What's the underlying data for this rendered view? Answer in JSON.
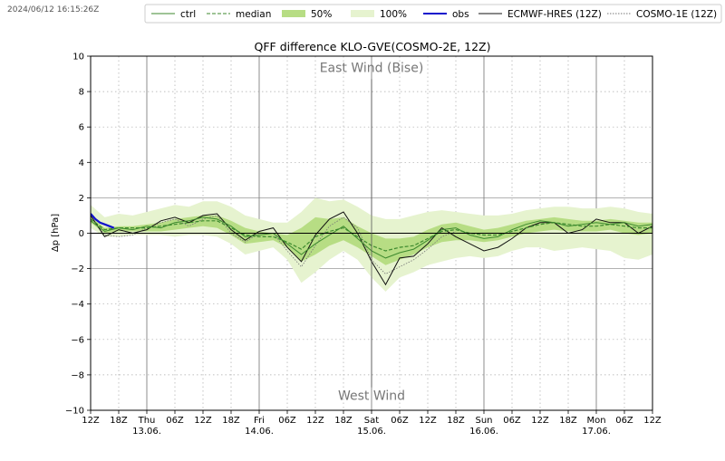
{
  "timestamp": "2024/06/12 16:15:26Z",
  "chart_data": {
    "type": "line",
    "title": "QFF difference KLO-GVE(COSMO-2E, 12Z)",
    "ylabel": "Δp [hPa]",
    "xlabel": "",
    "ylim": [
      -10,
      10
    ],
    "yticks": [
      -10,
      -8,
      -6,
      -4,
      -2,
      0,
      2,
      4,
      6,
      8,
      10
    ],
    "xlim": [
      0,
      120
    ],
    "xticks": [
      {
        "x": 0,
        "label": "12Z"
      },
      {
        "x": 6,
        "label": "18Z"
      },
      {
        "x": 12,
        "label": "Thu\n13.06."
      },
      {
        "x": 18,
        "label": "06Z"
      },
      {
        "x": 24,
        "label": "12Z"
      },
      {
        "x": 30,
        "label": "18Z"
      },
      {
        "x": 36,
        "label": "Fri\n14.06."
      },
      {
        "x": 42,
        "label": "06Z"
      },
      {
        "x": 48,
        "label": "12Z"
      },
      {
        "x": 54,
        "label": "18Z"
      },
      {
        "x": 60,
        "label": "Sat\n15.06."
      },
      {
        "x": 66,
        "label": "06Z"
      },
      {
        "x": 72,
        "label": "12Z"
      },
      {
        "x": 78,
        "label": "18Z"
      },
      {
        "x": 84,
        "label": "Sun\n16.06."
      },
      {
        "x": 90,
        "label": "06Z"
      },
      {
        "x": 96,
        "label": "12Z"
      },
      {
        "x": 102,
        "label": "18Z"
      },
      {
        "x": 108,
        "label": "Mon\n17.06."
      },
      {
        "x": 114,
        "label": "06Z"
      },
      {
        "x": 120,
        "label": "12Z"
      }
    ],
    "grid": true,
    "annotations": {
      "top": "East Wind (Bise)",
      "bottom": "West Wind"
    },
    "legend_position": "top-right",
    "legend": [
      {
        "label": "ctrl",
        "style": "ctrl"
      },
      {
        "label": "median",
        "style": "median"
      },
      {
        "label": "50%",
        "style": "band50"
      },
      {
        "label": "100%",
        "style": "band100"
      },
      {
        "label": "obs",
        "style": "obs"
      },
      {
        "label": "ECMWF-HRES (12Z)",
        "style": "ecmwf"
      },
      {
        "label": "COSMO-1E (12Z)",
        "style": "cosmo1e"
      }
    ],
    "colors": {
      "band100": "#e6f3cf",
      "band50": "#b7dd84",
      "ctrl": "#3d8a2e",
      "median": "#3d8a2e",
      "obs": "#1111cc",
      "ecmwf": "#111111",
      "cosmo1e": "#777777",
      "zero": "#000000",
      "day_lines": "#808080",
      "grid": "#aaaaaa"
    },
    "series": {
      "band100_upper": [
        [
          0,
          1.6
        ],
        [
          3,
          0.9
        ],
        [
          6,
          1.1
        ],
        [
          9,
          1.0
        ],
        [
          12,
          1.2
        ],
        [
          15,
          1.4
        ],
        [
          18,
          1.6
        ],
        [
          21,
          1.5
        ],
        [
          24,
          1.8
        ],
        [
          27,
          1.8
        ],
        [
          30,
          1.5
        ],
        [
          33,
          1.0
        ],
        [
          36,
          0.8
        ],
        [
          39,
          0.6
        ],
        [
          42,
          0.6
        ],
        [
          45,
          1.2
        ],
        [
          48,
          2.0
        ],
        [
          51,
          1.8
        ],
        [
          54,
          1.9
        ],
        [
          57,
          1.5
        ],
        [
          60,
          1.0
        ],
        [
          63,
          0.8
        ],
        [
          66,
          0.8
        ],
        [
          69,
          1.0
        ],
        [
          72,
          1.2
        ],
        [
          75,
          1.3
        ],
        [
          78,
          1.2
        ],
        [
          81,
          1.1
        ],
        [
          84,
          1.0
        ],
        [
          87,
          1.0
        ],
        [
          90,
          1.1
        ],
        [
          93,
          1.3
        ],
        [
          96,
          1.4
        ],
        [
          99,
          1.5
        ],
        [
          102,
          1.5
        ],
        [
          105,
          1.4
        ],
        [
          108,
          1.4
        ],
        [
          111,
          1.5
        ],
        [
          114,
          1.4
        ],
        [
          117,
          1.2
        ],
        [
          120,
          1.1
        ]
      ],
      "band100_lower": [
        [
          0,
          0.3
        ],
        [
          3,
          -0.2
        ],
        [
          6,
          -0.2
        ],
        [
          9,
          -0.1
        ],
        [
          12,
          -0.1
        ],
        [
          15,
          -0.1
        ],
        [
          18,
          -0.2
        ],
        [
          21,
          -0.1
        ],
        [
          24,
          -0.1
        ],
        [
          27,
          -0.2
        ],
        [
          30,
          -0.6
        ],
        [
          33,
          -1.2
        ],
        [
          36,
          -1.0
        ],
        [
          39,
          -0.8
        ],
        [
          42,
          -1.5
        ],
        [
          45,
          -2.8
        ],
        [
          48,
          -2.2
        ],
        [
          51,
          -1.5
        ],
        [
          54,
          -1.0
        ],
        [
          57,
          -1.5
        ],
        [
          60,
          -2.5
        ],
        [
          63,
          -3.3
        ],
        [
          66,
          -2.5
        ],
        [
          69,
          -2.2
        ],
        [
          72,
          -1.8
        ],
        [
          75,
          -1.6
        ],
        [
          78,
          -1.4
        ],
        [
          81,
          -1.3
        ],
        [
          84,
          -1.4
        ],
        [
          87,
          -1.3
        ],
        [
          90,
          -1.0
        ],
        [
          93,
          -0.8
        ],
        [
          96,
          -0.8
        ],
        [
          99,
          -1.0
        ],
        [
          102,
          -0.9
        ],
        [
          105,
          -0.8
        ],
        [
          108,
          -0.9
        ],
        [
          111,
          -1.0
        ],
        [
          114,
          -1.4
        ],
        [
          117,
          -1.5
        ],
        [
          120,
          -1.2
        ]
      ],
      "band50_upper": [
        [
          0,
          0.9
        ],
        [
          3,
          0.3
        ],
        [
          6,
          0.4
        ],
        [
          9,
          0.4
        ],
        [
          12,
          0.5
        ],
        [
          15,
          0.6
        ],
        [
          18,
          0.8
        ],
        [
          21,
          0.9
        ],
        [
          24,
          1.0
        ],
        [
          27,
          1.0
        ],
        [
          30,
          0.7
        ],
        [
          33,
          0.3
        ],
        [
          36,
          0.1
        ],
        [
          39,
          0.0
        ],
        [
          42,
          -0.1
        ],
        [
          45,
          0.3
        ],
        [
          48,
          0.9
        ],
        [
          51,
          0.8
        ],
        [
          54,
          0.9
        ],
        [
          57,
          0.4
        ],
        [
          60,
          0.0
        ],
        [
          63,
          -0.3
        ],
        [
          66,
          -0.3
        ],
        [
          69,
          -0.2
        ],
        [
          72,
          0.2
        ],
        [
          75,
          0.5
        ],
        [
          78,
          0.6
        ],
        [
          81,
          0.4
        ],
        [
          84,
          0.2
        ],
        [
          87,
          0.3
        ],
        [
          90,
          0.5
        ],
        [
          93,
          0.7
        ],
        [
          96,
          0.8
        ],
        [
          99,
          0.9
        ],
        [
          102,
          0.8
        ],
        [
          105,
          0.7
        ],
        [
          108,
          0.7
        ],
        [
          111,
          0.8
        ],
        [
          114,
          0.7
        ],
        [
          117,
          0.6
        ],
        [
          120,
          0.6
        ]
      ],
      "band50_lower": [
        [
          0,
          0.6
        ],
        [
          3,
          0.0
        ],
        [
          6,
          0.1
        ],
        [
          9,
          0.1
        ],
        [
          12,
          0.1
        ],
        [
          15,
          0.1
        ],
        [
          18,
          0.2
        ],
        [
          21,
          0.3
        ],
        [
          24,
          0.4
        ],
        [
          27,
          0.3
        ],
        [
          30,
          -0.1
        ],
        [
          33,
          -0.6
        ],
        [
          36,
          -0.5
        ],
        [
          39,
          -0.4
        ],
        [
          42,
          -0.8
        ],
        [
          45,
          -1.6
        ],
        [
          48,
          -1.2
        ],
        [
          51,
          -0.7
        ],
        [
          54,
          -0.4
        ],
        [
          57,
          -0.8
        ],
        [
          60,
          -1.3
        ],
        [
          63,
          -1.8
        ],
        [
          66,
          -1.5
        ],
        [
          69,
          -1.2
        ],
        [
          72,
          -0.8
        ],
        [
          75,
          -0.5
        ],
        [
          78,
          -0.4
        ],
        [
          81,
          -0.4
        ],
        [
          84,
          -0.5
        ],
        [
          87,
          -0.4
        ],
        [
          90,
          -0.2
        ],
        [
          93,
          0.0
        ],
        [
          96,
          0.1
        ],
        [
          99,
          0.2
        ],
        [
          102,
          0.1
        ],
        [
          105,
          0.1
        ],
        [
          108,
          0.1
        ],
        [
          111,
          0.2
        ],
        [
          114,
          0.0
        ],
        [
          117,
          -0.1
        ],
        [
          120,
          0.0
        ]
      ],
      "median": [
        [
          0,
          0.8
        ],
        [
          3,
          0.2
        ],
        [
          6,
          0.3
        ],
        [
          9,
          0.3
        ],
        [
          12,
          0.3
        ],
        [
          15,
          0.4
        ],
        [
          18,
          0.5
        ],
        [
          21,
          0.6
        ],
        [
          24,
          0.7
        ],
        [
          27,
          0.7
        ],
        [
          30,
          0.3
        ],
        [
          33,
          -0.1
        ],
        [
          36,
          -0.2
        ],
        [
          39,
          -0.2
        ],
        [
          42,
          -0.5
        ],
        [
          45,
          -0.9
        ],
        [
          48,
          -0.2
        ],
        [
          51,
          0.1
        ],
        [
          54,
          0.3
        ],
        [
          57,
          -0.2
        ],
        [
          60,
          -0.7
        ],
        [
          63,
          -1.0
        ],
        [
          66,
          -0.8
        ],
        [
          69,
          -0.7
        ],
        [
          72,
          -0.3
        ],
        [
          75,
          0.1
        ],
        [
          78,
          0.2
        ],
        [
          81,
          0.0
        ],
        [
          84,
          -0.1
        ],
        [
          87,
          -0.1
        ],
        [
          90,
          0.1
        ],
        [
          93,
          0.3
        ],
        [
          96,
          0.5
        ],
        [
          99,
          0.6
        ],
        [
          102,
          0.5
        ],
        [
          105,
          0.4
        ],
        [
          108,
          0.4
        ],
        [
          111,
          0.5
        ],
        [
          114,
          0.4
        ],
        [
          117,
          0.3
        ],
        [
          120,
          0.3
        ]
      ],
      "ctrl": [
        [
          0,
          0.7
        ],
        [
          3,
          0.1
        ],
        [
          6,
          0.3
        ],
        [
          9,
          0.2
        ],
        [
          12,
          0.4
        ],
        [
          15,
          0.3
        ],
        [
          18,
          0.6
        ],
        [
          21,
          0.7
        ],
        [
          24,
          0.9
        ],
        [
          27,
          0.8
        ],
        [
          30,
          0.4
        ],
        [
          33,
          -0.2
        ],
        [
          36,
          -0.1
        ],
        [
          39,
          0.0
        ],
        [
          42,
          -0.6
        ],
        [
          45,
          -1.2
        ],
        [
          48,
          -0.6
        ],
        [
          51,
          -0.1
        ],
        [
          54,
          0.4
        ],
        [
          57,
          -0.3
        ],
        [
          60,
          -1.0
        ],
        [
          63,
          -1.4
        ],
        [
          66,
          -1.1
        ],
        [
          69,
          -0.9
        ],
        [
          72,
          -0.4
        ],
        [
          75,
          0.2
        ],
        [
          78,
          0.3
        ],
        [
          81,
          -0.1
        ],
        [
          84,
          -0.3
        ],
        [
          87,
          -0.2
        ],
        [
          90,
          0.2
        ],
        [
          93,
          0.5
        ],
        [
          96,
          0.7
        ],
        [
          99,
          0.6
        ],
        [
          102,
          0.4
        ],
        [
          105,
          0.5
        ],
        [
          108,
          0.6
        ],
        [
          111,
          0.5
        ],
        [
          114,
          0.6
        ],
        [
          117,
          0.4
        ],
        [
          120,
          0.5
        ]
      ],
      "obs": [
        [
          0,
          1.1
        ],
        [
          1,
          0.8
        ],
        [
          2,
          0.6
        ],
        [
          3,
          0.5
        ],
        [
          4,
          0.4
        ],
        [
          5,
          0.3
        ]
      ],
      "ecmwf": [
        [
          0,
          1.0
        ],
        [
          3,
          -0.2
        ],
        [
          6,
          0.2
        ],
        [
          9,
          0.0
        ],
        [
          12,
          0.2
        ],
        [
          15,
          0.7
        ],
        [
          18,
          0.9
        ],
        [
          21,
          0.6
        ],
        [
          24,
          1.0
        ],
        [
          27,
          1.1
        ],
        [
          30,
          0.2
        ],
        [
          33,
          -0.4
        ],
        [
          36,
          0.1
        ],
        [
          39,
          0.3
        ],
        [
          42,
          -0.8
        ],
        [
          45,
          -1.6
        ],
        [
          48,
          -0.1
        ],
        [
          51,
          0.8
        ],
        [
          54,
          1.2
        ],
        [
          57,
          0.0
        ],
        [
          60,
          -1.6
        ],
        [
          63,
          -2.9
        ],
        [
          66,
          -1.4
        ],
        [
          69,
          -1.3
        ],
        [
          72,
          -0.6
        ],
        [
          75,
          0.3
        ],
        [
          78,
          -0.2
        ],
        [
          81,
          -0.6
        ],
        [
          84,
          -1.0
        ],
        [
          87,
          -0.8
        ],
        [
          90,
          -0.3
        ],
        [
          93,
          0.3
        ],
        [
          96,
          0.6
        ],
        [
          99,
          0.6
        ],
        [
          102,
          0.0
        ],
        [
          105,
          0.2
        ],
        [
          108,
          0.8
        ],
        [
          111,
          0.6
        ],
        [
          114,
          0.6
        ],
        [
          117,
          0.0
        ],
        [
          120,
          0.4
        ]
      ],
      "cosmo1e": [
        [
          0,
          1.0
        ],
        [
          3,
          -0.1
        ],
        [
          6,
          -0.2
        ],
        [
          9,
          -0.1
        ],
        [
          12,
          0.3
        ],
        [
          15,
          0.6
        ],
        [
          18,
          0.8
        ],
        [
          21,
          0.4
        ],
        [
          24,
          0.8
        ],
        [
          27,
          1.0
        ],
        [
          30,
          0.0
        ],
        [
          33,
          -0.5
        ],
        [
          36,
          0.0
        ],
        [
          39,
          0.0
        ],
        [
          42,
          -1.0
        ],
        [
          45,
          -1.9
        ],
        [
          48,
          -0.7
        ],
        [
          51,
          0.4
        ],
        [
          54,
          0.9
        ],
        [
          57,
          0.3
        ],
        [
          60,
          -1.5
        ],
        [
          63,
          -2.3
        ],
        [
          66,
          -1.9
        ],
        [
          69,
          -1.5
        ],
        [
          72,
          -0.9
        ],
        [
          75,
          -0.2
        ],
        [
          78,
          0.1
        ]
      ]
    }
  }
}
